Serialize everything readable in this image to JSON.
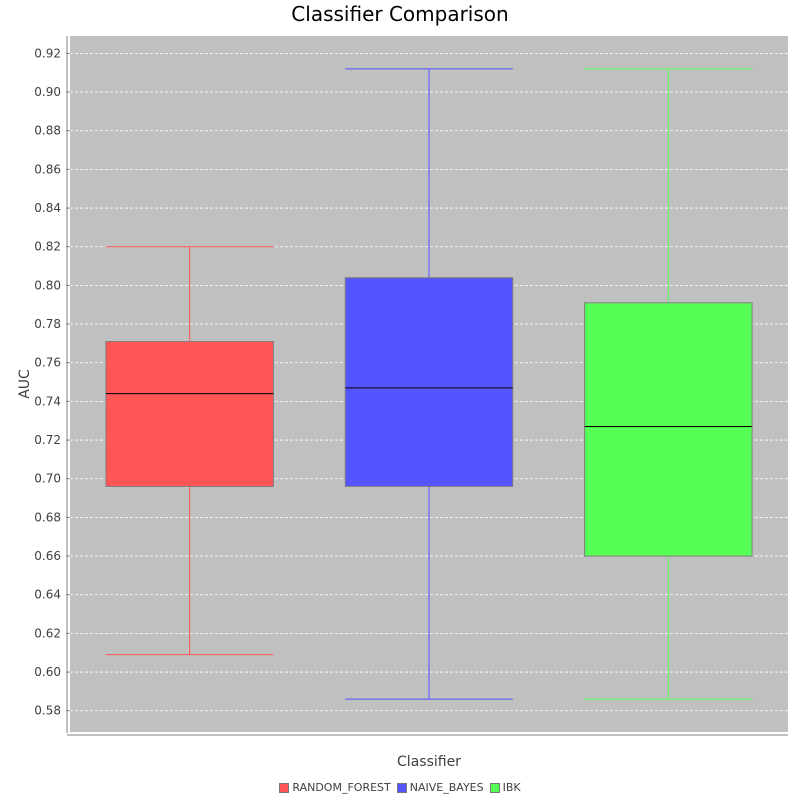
{
  "chart_data": {
    "type": "boxplot",
    "title": "Classifier Comparison",
    "xlabel": "Classifier",
    "ylabel": "AUC",
    "ylim": [
      0.569,
      0.929
    ],
    "y_ticks": [
      "0.58",
      "0.60",
      "0.62",
      "0.64",
      "0.66",
      "0.68",
      "0.70",
      "0.72",
      "0.74",
      "0.76",
      "0.78",
      "0.80",
      "0.82",
      "0.84",
      "0.86",
      "0.88",
      "0.90",
      "0.92"
    ],
    "grid": true,
    "legend_position": "bottom",
    "plot_background": "#c0c0c0",
    "series": [
      {
        "name": "RANDOM_FOREST",
        "color": "#ff5555",
        "whisker_low": 0.609,
        "q1": 0.696,
        "median": 0.744,
        "q3": 0.771,
        "whisker_high": 0.82
      },
      {
        "name": "NAIVE_BAYES",
        "color": "#5555ff",
        "whisker_low": 0.586,
        "q1": 0.696,
        "median": 0.747,
        "q3": 0.804,
        "whisker_high": 0.912
      },
      {
        "name": "IBK",
        "color": "#55ff55",
        "whisker_low": 0.586,
        "q1": 0.66,
        "median": 0.727,
        "q3": 0.791,
        "whisker_high": 0.912
      }
    ]
  }
}
